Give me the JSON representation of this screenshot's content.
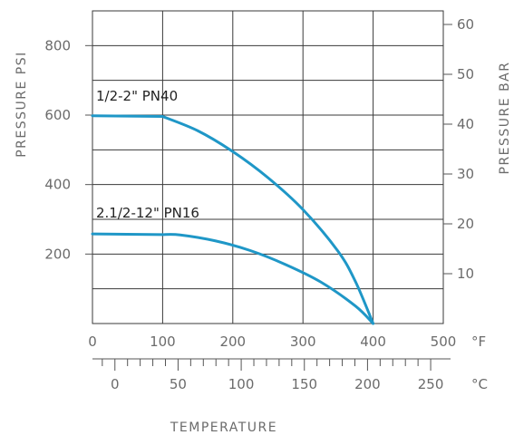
{
  "chart_data": {
    "type": "line",
    "title": "",
    "xlabel": "TEMPERATURE",
    "ylabel_left": "PRESSURE PSI",
    "ylabel_right": "PRESSURE BAR",
    "x_unit_primary": "°F",
    "x_unit_secondary": "°C",
    "xlim_f": [
      0,
      500
    ],
    "ylim_psi": [
      0,
      900
    ],
    "x_ticks_f": [
      "0",
      "100",
      "200",
      "300",
      "400",
      "500"
    ],
    "x_ticks_c": [
      "0",
      "50",
      "100",
      "150",
      "200",
      "250"
    ],
    "y_ticks_psi": [
      "200",
      "400",
      "600",
      "800"
    ],
    "y_ticks_bar": [
      "10",
      "20",
      "30",
      "40",
      "50",
      "60"
    ],
    "grid": true,
    "line_color": "#1f97c7",
    "series": [
      {
        "name": "1/2-2\" PN40",
        "x": [
          0,
          100,
          150,
          200,
          250,
          300,
          350,
          375,
          400
        ],
        "y": [
          598,
          596,
          555,
          495,
          420,
          328,
          208,
          120,
          0
        ]
      },
      {
        "name": "2.1/2-12\" PN16",
        "x": [
          0,
          100,
          125,
          175,
          225,
          275,
          325,
          375,
          400
        ],
        "y": [
          258,
          256,
          255,
          238,
          210,
          170,
          120,
          50,
          0
        ]
      }
    ]
  }
}
